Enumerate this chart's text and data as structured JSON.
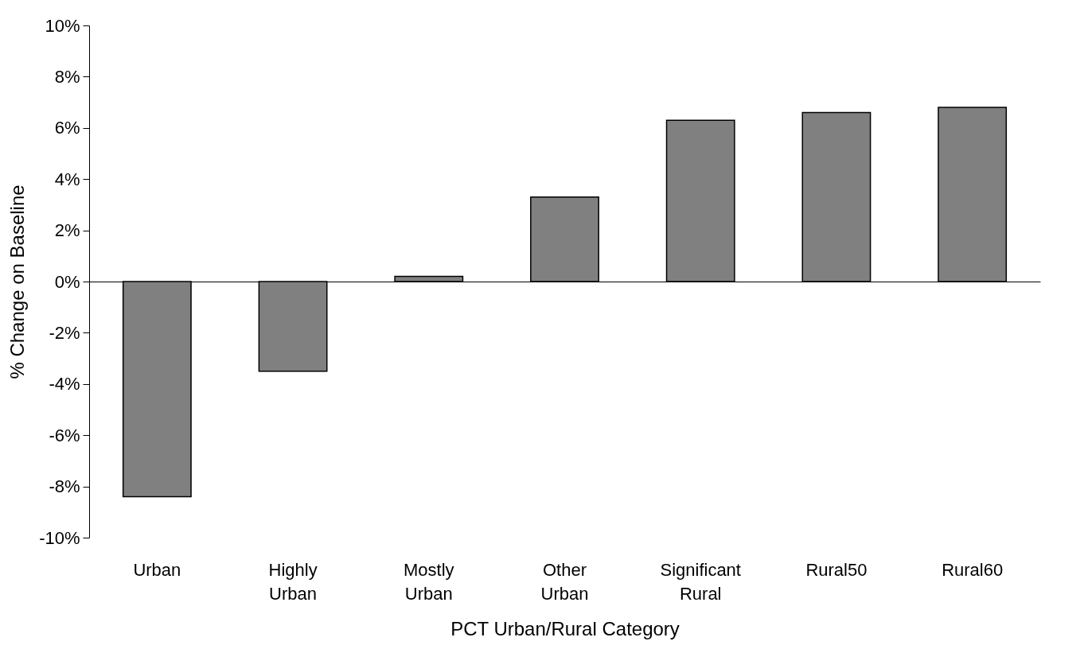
{
  "chart_data": {
    "type": "bar",
    "xlabel": "PCT Urban/Rural Category",
    "ylabel": "% Change on Baseline",
    "categories": [
      "Urban",
      "Highly Urban",
      "Mostly Urban",
      "Other Urban",
      "Significant Rural",
      "Rural50",
      "Rural60"
    ],
    "values": [
      -8.4,
      -3.5,
      0.2,
      3.3,
      6.3,
      6.6,
      6.8
    ],
    "color": "#808080",
    "ylim": [
      -10,
      10
    ],
    "yticks": [
      {
        "value": -10,
        "label": "-10%"
      },
      {
        "value": -8,
        "label": "-8%"
      },
      {
        "value": -6,
        "label": "-6%"
      },
      {
        "value": -4,
        "label": "-4%"
      },
      {
        "value": -2,
        "label": "-2%"
      },
      {
        "value": 0,
        "label": "0%"
      },
      {
        "value": 2,
        "label": "2%"
      },
      {
        "value": 4,
        "label": "4%"
      },
      {
        "value": 6,
        "label": "6%"
      },
      {
        "value": 8,
        "label": "8%"
      },
      {
        "value": 10,
        "label": "10%"
      }
    ]
  }
}
